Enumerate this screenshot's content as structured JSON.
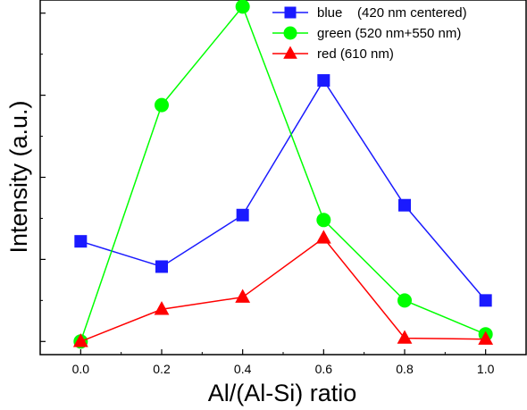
{
  "chart_data": {
    "type": "line",
    "xlabel": "Al/(Al-Si) ratio",
    "ylabel": "Intensity (a.u.)",
    "x": [
      0.0,
      0.2,
      0.4,
      0.6,
      0.8,
      1.0
    ],
    "x_tick_labels": [
      "0.0",
      "0.2",
      "0.4",
      "0.6",
      "0.8",
      "1.0"
    ],
    "xlim": [
      -0.1,
      1.1
    ],
    "ylim": [
      -0.04,
      1.04
    ],
    "y_tick_values": [
      0.0,
      0.25,
      0.5,
      0.75,
      1.0
    ],
    "y_tick_labels_shown": false,
    "grid": false,
    "legend_position": "top-right",
    "series": [
      {
        "name": "blue    (420 nm centered)",
        "marker": "square",
        "color": "#1a1aff",
        "values": [
          0.305,
          0.228,
          0.385,
          0.795,
          0.415,
          0.125
        ]
      },
      {
        "name": "green (520 nm+550 nm)",
        "marker": "circle",
        "color": "#00ff00",
        "values": [
          0.0,
          0.72,
          1.02,
          0.37,
          0.125,
          0.022
        ]
      },
      {
        "name": "red (610 nm)",
        "marker": "triangle",
        "color": "#ff0000",
        "values": [
          0.0,
          0.098,
          0.135,
          0.315,
          0.01,
          0.007
        ]
      }
    ]
  }
}
